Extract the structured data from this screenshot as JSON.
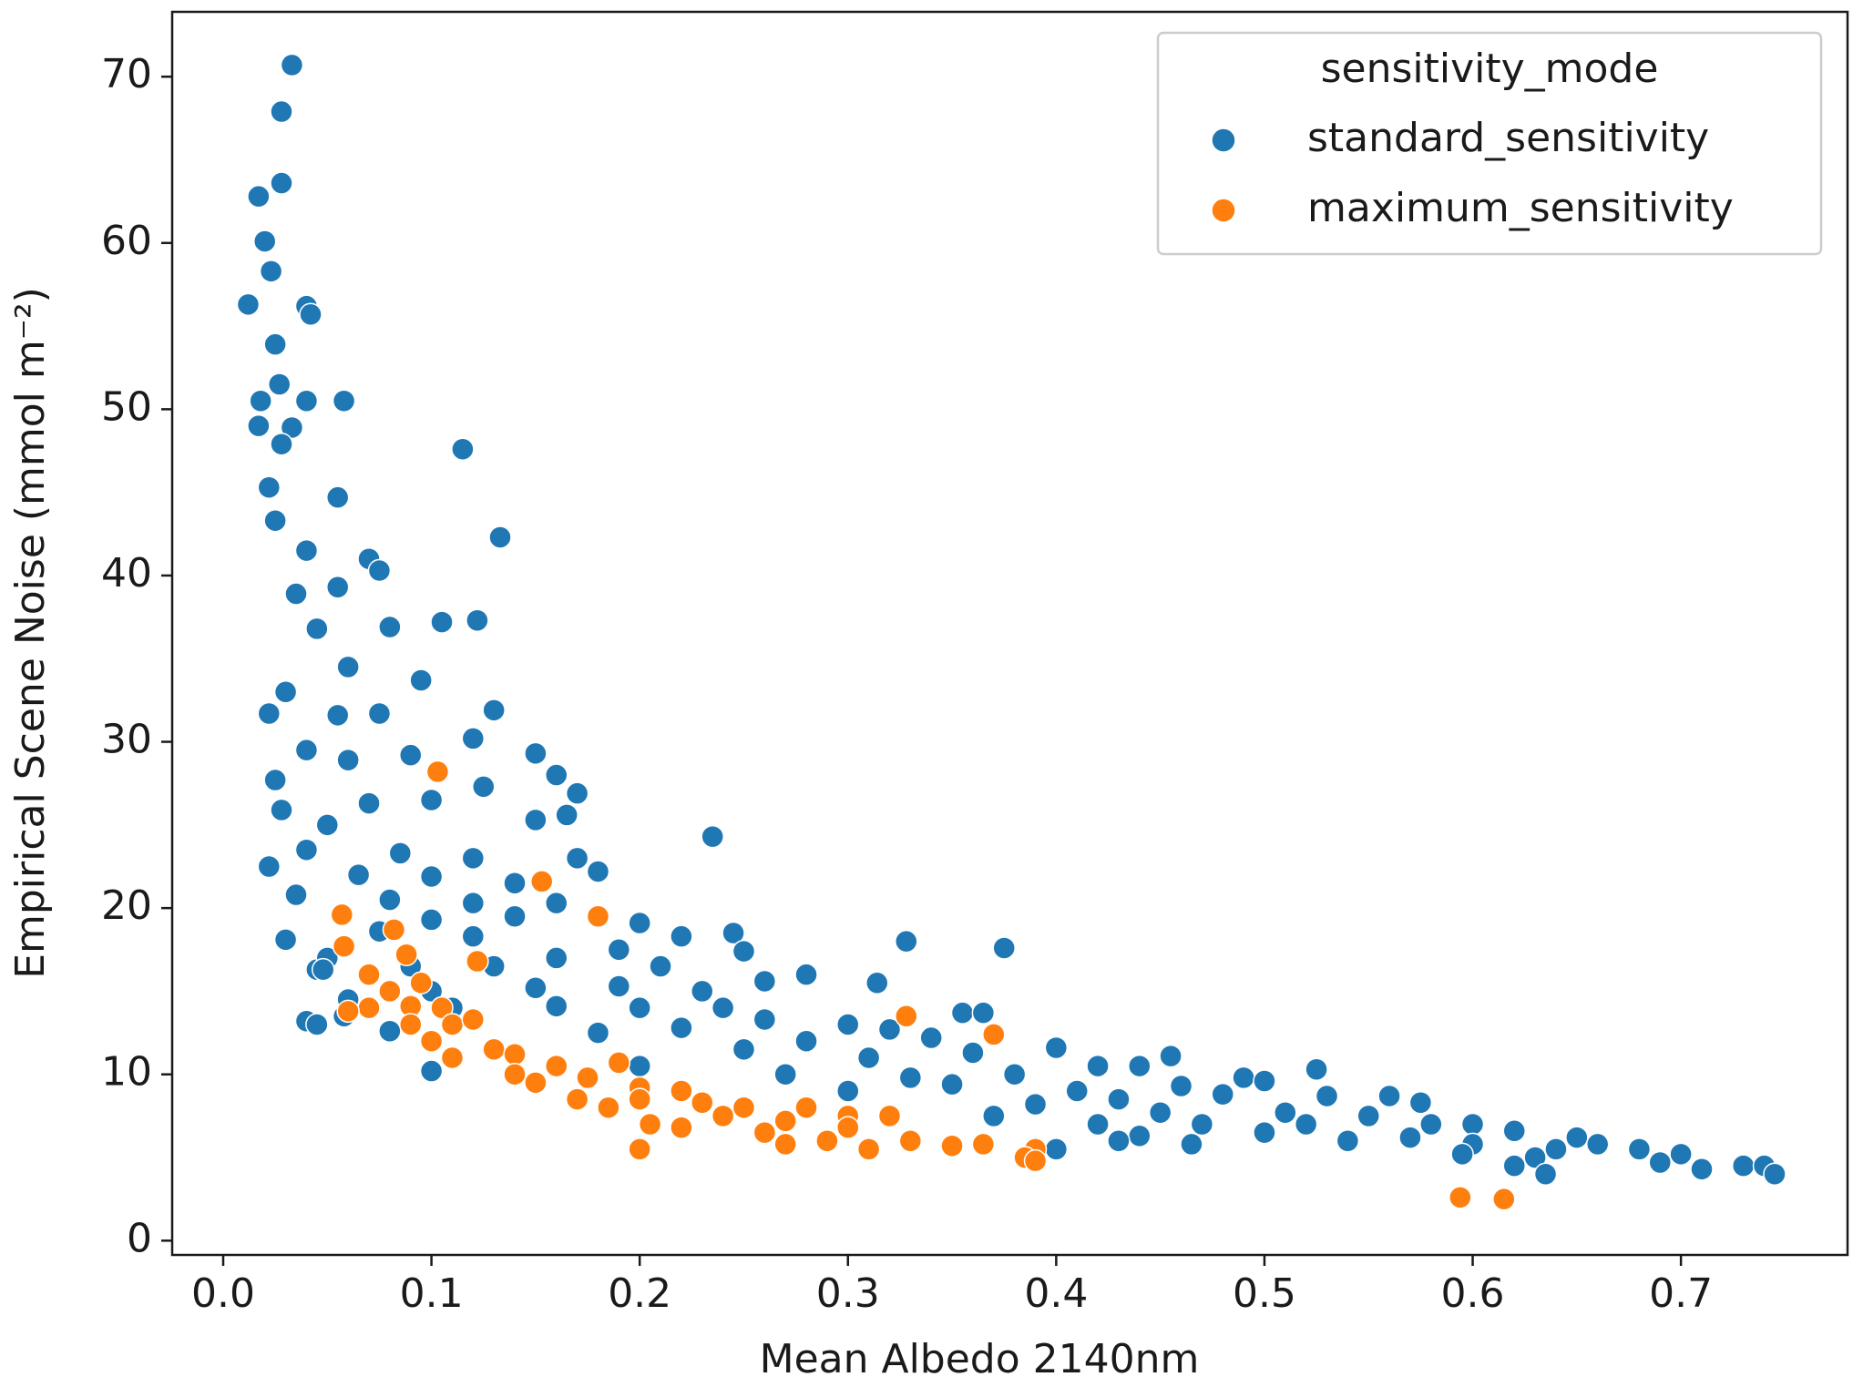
{
  "chart_data": {
    "type": "scatter",
    "x_label": "Mean Albedo 2140nm",
    "y_label": "Empirical Scene Noise (mmol m⁻²)",
    "xlim": [
      -0.0245,
      0.78
    ],
    "ylim": [
      -0.86,
      73.9
    ],
    "xticks": [
      {
        "value": 0.0,
        "label": "0.0"
      },
      0.1,
      0.2,
      0.3,
      0.4,
      0.5,
      0.6,
      0.7
    ],
    "yticks": [
      0,
      10,
      20,
      30,
      40,
      50,
      60,
      70
    ],
    "grid": false,
    "legend_title": "sensitivity_mode",
    "legend_loc": "upper right",
    "series": [
      {
        "name": "standard_sensitivity",
        "color": "#1f77b4",
        "x": [
          0.033,
          0.028,
          0.028,
          0.017,
          0.02,
          0.023,
          0.012,
          0.04,
          0.042,
          0.025,
          0.027,
          0.04,
          0.058,
          0.018,
          0.033,
          0.017,
          0.028,
          0.115,
          0.022,
          0.055,
          0.133,
          0.025,
          0.04,
          0.07,
          0.075,
          0.055,
          0.035,
          0.105,
          0.122,
          0.045,
          0.08,
          0.06,
          0.095,
          0.03,
          0.022,
          0.13,
          0.12,
          0.055,
          0.075,
          0.04,
          0.06,
          0.09,
          0.15,
          0.16,
          0.17,
          0.025,
          0.028,
          0.07,
          0.1,
          0.125,
          0.165,
          0.15,
          0.05,
          0.235,
          0.04,
          0.085,
          0.12,
          0.17,
          0.022,
          0.065,
          0.1,
          0.14,
          0.18,
          0.035,
          0.08,
          0.12,
          0.16,
          0.2,
          0.1,
          0.14,
          0.075,
          0.12,
          0.22,
          0.245,
          0.03,
          0.328,
          0.375,
          0.25,
          0.16,
          0.19,
          0.045,
          0.09,
          0.13,
          0.21,
          0.28,
          0.26,
          0.314,
          0.1,
          0.15,
          0.19,
          0.23,
          0.24,
          0.2,
          0.16,
          0.06,
          0.11,
          0.355,
          0.365,
          0.04,
          0.058,
          0.045,
          0.26,
          0.3,
          0.32,
          0.22,
          0.18,
          0.08,
          0.28,
          0.34,
          0.4,
          0.455,
          0.25,
          0.31,
          0.36,
          0.42,
          0.44,
          0.1,
          0.525,
          0.49,
          0.5,
          0.2,
          0.27,
          0.33,
          0.38,
          0.41,
          0.46,
          0.3,
          0.35,
          0.43,
          0.48,
          0.53,
          0.56,
          0.575,
          0.45,
          0.39,
          0.37,
          0.51,
          0.55,
          0.6,
          0.42,
          0.47,
          0.52,
          0.58,
          0.62,
          0.44,
          0.5,
          0.54,
          0.57,
          0.6,
          0.65,
          0.66,
          0.465,
          0.43,
          0.64,
          0.68,
          0.63,
          0.7,
          0.69,
          0.71,
          0.73,
          0.74,
          0.745,
          0.62,
          0.635,
          0.595,
          0.4,
          0.05,
          0.048
        ],
        "values": [
          70.7,
          67.9,
          63.6,
          62.8,
          60.1,
          58.3,
          56.3,
          56.2,
          55.7,
          53.9,
          51.5,
          50.5,
          50.5,
          50.5,
          48.9,
          49.0,
          47.9,
          47.6,
          45.3,
          44.7,
          42.3,
          43.3,
          41.5,
          41.0,
          40.3,
          39.3,
          38.9,
          37.2,
          37.3,
          36.8,
          36.9,
          34.5,
          33.7,
          33.0,
          31.7,
          31.9,
          30.2,
          31.6,
          31.7,
          29.5,
          28.9,
          29.2,
          29.3,
          28.0,
          26.9,
          27.7,
          25.9,
          26.3,
          26.5,
          27.3,
          25.6,
          25.3,
          25.0,
          24.3,
          23.5,
          23.3,
          23.0,
          23.0,
          22.5,
          22.0,
          21.9,
          21.5,
          22.2,
          20.8,
          20.5,
          20.3,
          20.3,
          19.1,
          19.3,
          19.5,
          18.6,
          18.3,
          18.3,
          18.5,
          18.1,
          18.0,
          17.6,
          17.4,
          17.0,
          17.5,
          16.3,
          16.5,
          16.5,
          16.5,
          16.0,
          15.6,
          15.5,
          15.0,
          15.2,
          15.3,
          15.0,
          14.0,
          14.0,
          14.1,
          14.5,
          14.0,
          13.7,
          13.7,
          13.2,
          13.5,
          13.0,
          13.3,
          13.0,
          12.7,
          12.8,
          12.5,
          12.6,
          12.0,
          12.2,
          11.6,
          11.1,
          11.5,
          11.0,
          11.3,
          10.5,
          10.5,
          10.2,
          10.3,
          9.8,
          9.6,
          10.5,
          10.0,
          9.8,
          10.0,
          9.0,
          9.3,
          9.0,
          9.4,
          8.5,
          8.8,
          8.7,
          8.7,
          8.3,
          7.7,
          8.2,
          7.5,
          7.7,
          7.5,
          7.0,
          7.0,
          7.0,
          7.0,
          7.0,
          6.6,
          6.3,
          6.5,
          6.0,
          6.2,
          5.8,
          6.2,
          5.8,
          5.8,
          6.0,
          5.5,
          5.5,
          5.0,
          5.2,
          4.7,
          4.3,
          4.5,
          4.5,
          4.0,
          4.5,
          4.0,
          5.2,
          5.5,
          17.0,
          16.3
        ]
      },
      {
        "name": "maximum_sensitivity",
        "color": "#ff7f0e",
        "x": [
          0.103,
          0.153,
          0.18,
          0.057,
          0.058,
          0.082,
          0.088,
          0.122,
          0.07,
          0.08,
          0.095,
          0.09,
          0.105,
          0.07,
          0.06,
          0.09,
          0.11,
          0.12,
          0.328,
          0.1,
          0.13,
          0.37,
          0.11,
          0.14,
          0.16,
          0.19,
          0.14,
          0.15,
          0.175,
          0.2,
          0.22,
          0.17,
          0.2,
          0.23,
          0.25,
          0.28,
          0.185,
          0.3,
          0.24,
          0.27,
          0.32,
          0.205,
          0.22,
          0.26,
          0.3,
          0.29,
          0.33,
          0.27,
          0.31,
          0.35,
          0.365,
          0.39,
          0.385,
          0.2,
          0.39,
          0.594,
          0.615
        ],
        "values": [
          28.2,
          21.6,
          19.5,
          19.6,
          17.7,
          18.7,
          17.2,
          16.8,
          16.0,
          15.0,
          15.5,
          14.1,
          14.0,
          14.0,
          13.8,
          13.0,
          13.0,
          13.3,
          13.5,
          12.0,
          11.5,
          12.4,
          11.0,
          11.2,
          10.5,
          10.7,
          10.0,
          9.5,
          9.8,
          9.2,
          9.0,
          8.5,
          8.5,
          8.3,
          8.0,
          8.0,
          8.0,
          7.5,
          7.5,
          7.2,
          7.5,
          7.0,
          6.8,
          6.5,
          6.8,
          6.0,
          6.0,
          5.8,
          5.5,
          5.7,
          5.8,
          5.5,
          5.0,
          5.5,
          4.8,
          2.6,
          2.5
        ]
      }
    ]
  }
}
